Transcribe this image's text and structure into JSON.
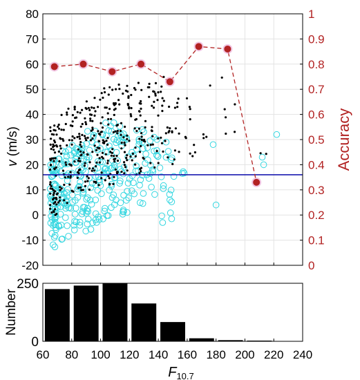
{
  "colors": {
    "speed_dots": "#000000",
    "speed_circles": "#33d6e0",
    "threshold": "#1a1ab0",
    "accuracy": "#b22222",
    "accuracy_marker_edge": "#e8a0d0",
    "bars": "#000000",
    "grid": "#e3e3e3"
  },
  "chart_data": [
    {
      "type": "scatter",
      "xlabel_main": "F",
      "xlabel_sub": "10.7",
      "ylabel_italic": "v",
      "ylabel_unit": " (m/s)",
      "y2label": "Accuracy",
      "xlim": [
        60,
        240
      ],
      "ylim": [
        -20,
        80
      ],
      "y2lim": [
        0,
        1
      ],
      "grid": true,
      "y_ticks": [
        "-20",
        "-10",
        "0",
        "10",
        "20",
        "30",
        "40",
        "50",
        "60",
        "70",
        "80"
      ],
      "y2_ticks": [
        "0",
        "0.1",
        "0.2",
        "0.3",
        "0.4",
        "0.5",
        "0.6",
        "0.7",
        "0.8",
        "0.9",
        "1"
      ],
      "threshold_y": 16,
      "scatter_ranges": {
        "dots": [
          {
            "x": [
              65,
              70
            ],
            "y": [
              0,
              38
            ],
            "n": 60
          },
          {
            "x": [
              70,
              80
            ],
            "y": [
              4,
              44
            ],
            "n": 45
          },
          {
            "x": [
              80,
              90
            ],
            "y": [
              8,
              44
            ],
            "n": 55
          },
          {
            "x": [
              90,
              100
            ],
            "y": [
              10,
              48
            ],
            "n": 55
          },
          {
            "x": [
              100,
              110
            ],
            "y": [
              12,
              52
            ],
            "n": 55
          },
          {
            "x": [
              110,
              120
            ],
            "y": [
              16,
              52
            ],
            "n": 55
          },
          {
            "x": [
              120,
              130
            ],
            "y": [
              16,
              54
            ],
            "n": 40
          },
          {
            "x": [
              130,
              140
            ],
            "y": [
              18,
              56
            ],
            "n": 30
          },
          {
            "x": [
              140,
              150
            ],
            "y": [
              20,
              58
            ],
            "n": 22
          },
          {
            "x": [
              150,
              160
            ],
            "y": [
              22,
              50
            ],
            "n": 12
          },
          {
            "x": [
              160,
              175
            ],
            "y": [
              22,
              46
            ],
            "n": 10
          },
          {
            "x": [
              175,
              195
            ],
            "y": [
              32,
              58
            ],
            "n": 7
          },
          {
            "x": [
              210,
              215
            ],
            "y": [
              24,
              28
            ],
            "n": 2
          }
        ],
        "circles": [
          {
            "x": [
              65,
              70
            ],
            "y": [
              -13,
              22
            ],
            "n": 55
          },
          {
            "x": [
              70,
              80
            ],
            "y": [
              -10,
              26
            ],
            "n": 50
          },
          {
            "x": [
              80,
              90
            ],
            "y": [
              -8,
              28
            ],
            "n": 50
          },
          {
            "x": [
              90,
              100
            ],
            "y": [
              -6,
              34
            ],
            "n": 45
          },
          {
            "x": [
              100,
              110
            ],
            "y": [
              -2,
              38
            ],
            "n": 40
          },
          {
            "x": [
              110,
              120
            ],
            "y": [
              0,
              36
            ],
            "n": 35
          },
          {
            "x": [
              120,
              130
            ],
            "y": [
              4,
              34
            ],
            "n": 25
          },
          {
            "x": [
              130,
              140
            ],
            "y": [
              6,
              32
            ],
            "n": 20
          },
          {
            "x": [
              140,
              150
            ],
            "y": [
              -4,
              30
            ],
            "n": 15
          },
          {
            "x": [
              150,
              160
            ],
            "y": [
              14,
              22
            ],
            "n": 4
          }
        ]
      },
      "extra_circles": [
        {
          "x": 178,
          "y": 28
        },
        {
          "x": 180,
          "y": 4
        },
        {
          "x": 212,
          "y": 23
        },
        {
          "x": 213,
          "y": 20
        },
        {
          "x": 222,
          "y": 32
        },
        {
          "x": 143,
          "y": -3
        },
        {
          "x": 148,
          "y": 6
        }
      ],
      "accuracy_series": {
        "x": [
          68,
          88,
          108,
          128,
          148,
          168,
          188,
          208
        ],
        "y": [
          0.79,
          0.8,
          0.77,
          0.8,
          0.73,
          0.87,
          0.86,
          0.33
        ]
      }
    },
    {
      "type": "bar",
      "ylabel": "Number",
      "xlim": [
        60,
        240
      ],
      "ylim": [
        0,
        250
      ],
      "y_ticks": [
        "0",
        "250"
      ],
      "x_ticks": [
        "60",
        "80",
        "100",
        "120",
        "140",
        "160",
        "180",
        "200",
        "220",
        "240"
      ],
      "categories": [
        70,
        90,
        110,
        130,
        150,
        170,
        190,
        210,
        230
      ],
      "values": [
        225,
        240,
        250,
        163,
        83,
        13,
        5,
        3,
        1
      ]
    }
  ]
}
